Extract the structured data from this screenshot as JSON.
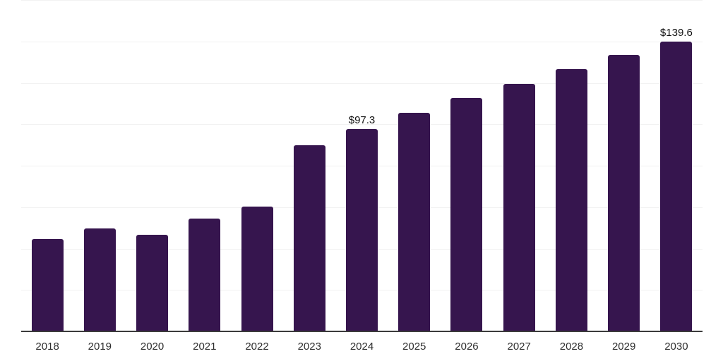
{
  "chart_data": {
    "type": "bar",
    "title": "",
    "xlabel": "",
    "ylabel": "",
    "categories": [
      "2018",
      "2019",
      "2020",
      "2021",
      "2022",
      "2023",
      "2024",
      "2025",
      "2026",
      "2027",
      "2028",
      "2029",
      "2030"
    ],
    "values": [
      44.4,
      49.4,
      46.2,
      54.0,
      59.8,
      89.6,
      97.3,
      105.1,
      112.3,
      119.3,
      126.3,
      133.0,
      139.6
    ],
    "data_labels": [
      "",
      "",
      "",
      "",
      "",
      "",
      "$97.3",
      "",
      "",
      "",
      "",
      "",
      "$139.6"
    ],
    "ylim": [
      0,
      160
    ],
    "gridline_step": 20,
    "grid": true,
    "legend": "none",
    "y_tick_labels_visible": false,
    "colors": {
      "bar": "#36154E",
      "gridline": "#f2f2f2",
      "axis_line": "#3b3b3b",
      "data_label": "#111111",
      "tick_label": "#2e2e2e",
      "background": "#ffffff"
    }
  }
}
